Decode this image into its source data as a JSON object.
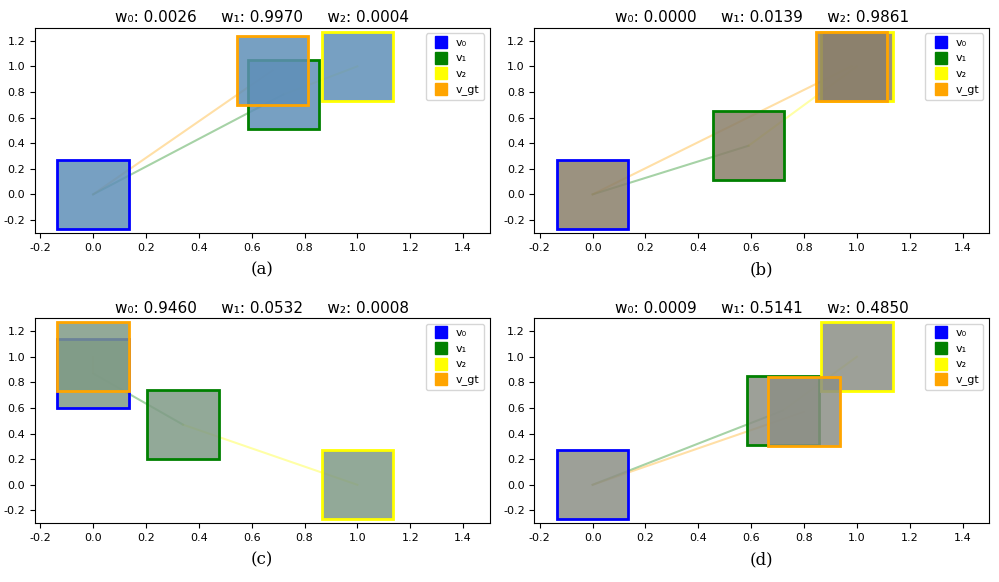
{
  "chart_data": [
    {
      "type": "scatter",
      "title": "w₀: 0.0026     w₁: 0.9970     w₂: 0.0004",
      "caption": "(a)",
      "xlim": [
        -0.22,
        1.5
      ],
      "ylim": [
        -0.3,
        1.3
      ],
      "xticks": [
        -0.2,
        {
          "value": 0,
          "label": "0.0"
        },
        0.2,
        0.4,
        0.6,
        0.8,
        {
          "value": 1,
          "label": "1.0"
        },
        1.2,
        1.4
      ],
      "yticks": [
        -0.2,
        {
          "value": 0,
          "label": "0.0"
        },
        0.2,
        0.4,
        0.6,
        0.8,
        {
          "value": 1,
          "label": "1.0"
        },
        1.2
      ],
      "legend": "upper right",
      "marker": "square",
      "series": [
        {
          "name": "v₀",
          "color": "#0000ff",
          "x": [
            0.0
          ],
          "y": [
            0.0
          ]
        },
        {
          "name": "v₁",
          "color": "#008000",
          "x": [
            0.72
          ],
          "y": [
            0.78
          ]
        },
        {
          "name": "v₂",
          "color": "#ffff00",
          "x": [
            1.0
          ],
          "y": [
            1.0
          ]
        },
        {
          "name": "v_gt",
          "color": "#ffa500",
          "x": [
            0.68
          ],
          "y": [
            0.97
          ]
        }
      ]
    },
    {
      "type": "scatter",
      "title": "w₀: 0.0000     w₁: 0.0139     w₂: 0.9861",
      "caption": "(b)",
      "xlim": [
        -0.22,
        1.5
      ],
      "ylim": [
        -0.3,
        1.3
      ],
      "xticks": [
        -0.2,
        {
          "value": 0,
          "label": "0.0"
        },
        0.2,
        0.4,
        0.6,
        0.8,
        {
          "value": 1,
          "label": "1.0"
        },
        1.2,
        1.4
      ],
      "yticks": [
        -0.2,
        {
          "value": 0,
          "label": "0.0"
        },
        0.2,
        0.4,
        0.6,
        0.8,
        {
          "value": 1,
          "label": "1.0"
        },
        1.2
      ],
      "legend": "upper right",
      "marker": "square",
      "series": [
        {
          "name": "v₀",
          "color": "#0000ff",
          "x": [
            0.0
          ],
          "y": [
            0.0
          ]
        },
        {
          "name": "v₁",
          "color": "#008000",
          "x": [
            0.59
          ],
          "y": [
            0.38
          ]
        },
        {
          "name": "v₂",
          "color": "#ffff00",
          "x": [
            1.0
          ],
          "y": [
            1.0
          ]
        },
        {
          "name": "v_gt",
          "color": "#ffa500",
          "x": [
            0.98
          ],
          "y": [
            1.0
          ]
        }
      ]
    },
    {
      "type": "scatter",
      "title": "w₀: 0.9460     w₁: 0.0532     w₂: 0.0008",
      "caption": "(c)",
      "xlim": [
        -0.22,
        1.5
      ],
      "ylim": [
        -0.3,
        1.3
      ],
      "xticks": [
        -0.2,
        {
          "value": 0,
          "label": "0.0"
        },
        0.2,
        0.4,
        0.6,
        0.8,
        {
          "value": 1,
          "label": "1.0"
        },
        1.2,
        1.4
      ],
      "yticks": [
        -0.2,
        {
          "value": 0,
          "label": "0.0"
        },
        0.2,
        0.4,
        0.6,
        0.8,
        {
          "value": 1,
          "label": "1.0"
        },
        1.2
      ],
      "legend": "upper right",
      "marker": "square",
      "series": [
        {
          "name": "v₀",
          "color": "#0000ff",
          "x": [
            0.0
          ],
          "y": [
            0.87
          ]
        },
        {
          "name": "v₁",
          "color": "#008000",
          "x": [
            0.34
          ],
          "y": [
            0.47
          ]
        },
        {
          "name": "v₂",
          "color": "#ffff00",
          "x": [
            1.0
          ],
          "y": [
            0.0
          ]
        },
        {
          "name": "v_gt",
          "color": "#ffa500",
          "x": [
            0.0
          ],
          "y": [
            1.0
          ]
        }
      ]
    },
    {
      "type": "scatter",
      "title": "w₀: 0.0009     w₁: 0.5141     w₂: 0.4850",
      "caption": "(d)",
      "xlim": [
        -0.22,
        1.5
      ],
      "ylim": [
        -0.3,
        1.3
      ],
      "xticks": [
        -0.2,
        {
          "value": 0,
          "label": "0.0"
        },
        0.2,
        0.4,
        0.6,
        0.8,
        {
          "value": 1,
          "label": "1.0"
        },
        1.2,
        1.4
      ],
      "yticks": [
        -0.2,
        {
          "value": 0,
          "label": "0.0"
        },
        0.2,
        0.4,
        0.6,
        0.8,
        {
          "value": 1,
          "label": "1.0"
        },
        1.2
      ],
      "legend": "upper right",
      "marker": "square",
      "series": [
        {
          "name": "v₀",
          "color": "#0000ff",
          "x": [
            0.0
          ],
          "y": [
            0.0
          ]
        },
        {
          "name": "v₁",
          "color": "#008000",
          "x": [
            0.72
          ],
          "y": [
            0.58
          ]
        },
        {
          "name": "v₂",
          "color": "#ffff00",
          "x": [
            1.0
          ],
          "y": [
            1.0
          ]
        },
        {
          "name": "v_gt",
          "color": "#ffa500",
          "x": [
            0.8
          ],
          "y": [
            0.57
          ]
        }
      ]
    }
  ]
}
